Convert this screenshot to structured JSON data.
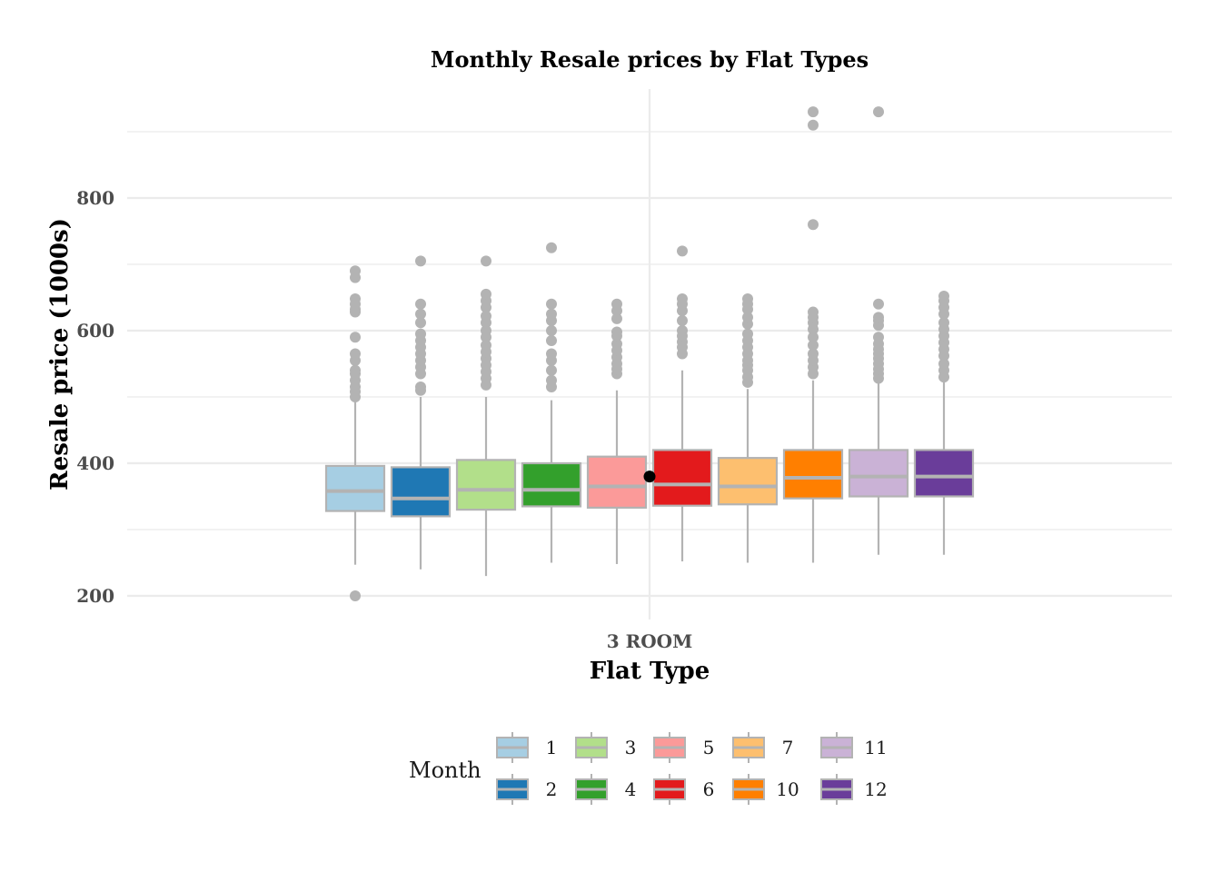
{
  "chart_data": {
    "type": "box",
    "title": "Monthly Resale prices by Flat Types",
    "xlabel": "Flat Type",
    "ylabel": "Resale price (1000s)",
    "categories": [
      "3 ROOM"
    ],
    "y_ticks": [
      "200",
      "400",
      "600",
      "800"
    ],
    "ylim": [
      170,
      960
    ],
    "grid": true,
    "legend": {
      "title": "Month",
      "position": "bottom"
    },
    "overall_mean": 380,
    "series": [
      {
        "name": "1",
        "color": "#a6cee3",
        "min": 247,
        "q1": 328,
        "median": 358,
        "q3": 396,
        "max": 497,
        "outliers": [
          200,
          500,
          508,
          515,
          525,
          535,
          540,
          555,
          565,
          590,
          628,
          632,
          640,
          648,
          680,
          690
        ]
      },
      {
        "name": "2",
        "color": "#1f78b4",
        "min": 240,
        "q1": 320,
        "median": 347,
        "q3": 394,
        "max": 500,
        "outliers": [
          510,
          515,
          535,
          545,
          555,
          565,
          575,
          585,
          595,
          612,
          625,
          640,
          705
        ]
      },
      {
        "name": "3",
        "color": "#b2df8a",
        "min": 230,
        "q1": 330,
        "median": 360,
        "q3": 405,
        "max": 500,
        "outliers": [
          518,
          528,
          538,
          548,
          558,
          568,
          578,
          590,
          600,
          612,
          622,
          635,
          645,
          655,
          705
        ]
      },
      {
        "name": "4",
        "color": "#33a02c",
        "min": 250,
        "q1": 335,
        "median": 360,
        "q3": 400,
        "max": 495,
        "outliers": [
          515,
          525,
          540,
          555,
          565,
          585,
          600,
          615,
          625,
          640,
          725
        ]
      },
      {
        "name": "5",
        "color": "#fb9a99",
        "min": 248,
        "q1": 333,
        "median": 365,
        "q3": 410,
        "max": 510,
        "outliers": [
          535,
          542,
          550,
          560,
          570,
          580,
          592,
          598,
          618,
          630,
          640
        ]
      },
      {
        "name": "6",
        "color": "#e31a1c",
        "min": 252,
        "q1": 336,
        "median": 368,
        "q3": 420,
        "max": 540,
        "outliers": [
          565,
          575,
          583,
          592,
          600,
          615,
          630,
          640,
          648,
          720
        ]
      },
      {
        "name": "7",
        "color": "#fdbf6f",
        "min": 250,
        "q1": 338,
        "median": 365,
        "q3": 408,
        "max": 512,
        "outliers": [
          522,
          530,
          540,
          548,
          555,
          565,
          575,
          585,
          595,
          610,
          620,
          632,
          640,
          648
        ]
      },
      {
        "name": "10",
        "color": "#ff7f00",
        "min": 250,
        "q1": 347,
        "median": 378,
        "q3": 420,
        "max": 525,
        "outliers": [
          535,
          545,
          555,
          565,
          578,
          590,
          602,
          612,
          620,
          628,
          760,
          910,
          930
        ]
      },
      {
        "name": "11",
        "color": "#cab2d6",
        "min": 262,
        "q1": 350,
        "median": 380,
        "q3": 420,
        "max": 522,
        "outliers": [
          528,
          535,
          542,
          550,
          558,
          565,
          572,
          580,
          590,
          608,
          615,
          620,
          640,
          930
        ]
      },
      {
        "name": "12",
        "color": "#6a3d9a",
        "min": 262,
        "q1": 350,
        "median": 380,
        "q3": 420,
        "max": 522,
        "outliers": [
          530,
          540,
          550,
          562,
          572,
          582,
          592,
          602,
          612,
          625,
          635,
          645,
          652
        ]
      }
    ]
  }
}
